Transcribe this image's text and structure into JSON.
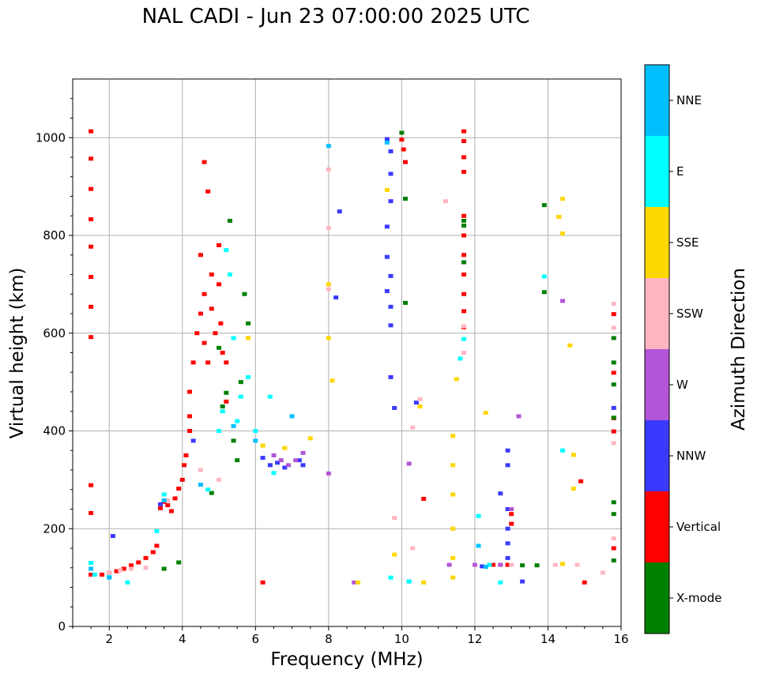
{
  "chart_data": {
    "type": "scatter",
    "title": "NAL CADI - Jun 23 07:00:00 2025 UTC",
    "xlabel": "Frequency (MHz)",
    "ylabel": "Virtual height (km)",
    "xlim": [
      1,
      16
    ],
    "ylim": [
      0,
      1120
    ],
    "xticks": [
      2,
      4,
      6,
      8,
      10,
      12,
      14,
      16
    ],
    "yticks": [
      0,
      200,
      400,
      600,
      800,
      1000
    ],
    "grid": true,
    "colorbar": {
      "label": "Azimuth Direction",
      "categories": [
        "X-mode",
        "Vertical",
        "NNW",
        "W",
        "SSW",
        "SSE",
        "E",
        "NNE"
      ],
      "colors": [
        "#008000",
        "#ff0000",
        "#3a3aff",
        "#b455d8",
        "#ffb6c1",
        "#ffd700",
        "#00ffff",
        "#00bfff"
      ]
    },
    "series": [
      {
        "name": "Vertical",
        "points": [
          [
            1.5,
            1013
          ],
          [
            1.5,
            957
          ],
          [
            1.5,
            895
          ],
          [
            1.5,
            833
          ],
          [
            1.5,
            777
          ],
          [
            1.5,
            715
          ],
          [
            1.5,
            654
          ],
          [
            1.5,
            592
          ],
          [
            1.5,
            289
          ],
          [
            1.5,
            232
          ],
          [
            1.5,
            106
          ],
          [
            1.8,
            106
          ],
          [
            2,
            110
          ],
          [
            2.2,
            113
          ],
          [
            2.4,
            118
          ],
          [
            2.6,
            125
          ],
          [
            2.8,
            131
          ],
          [
            3,
            140
          ],
          [
            3.2,
            152
          ],
          [
            3.3,
            165
          ],
          [
            3.4,
            242
          ],
          [
            3.5,
            255
          ],
          [
            3.6,
            248
          ],
          [
            3.7,
            236
          ],
          [
            3.8,
            262
          ],
          [
            3.9,
            282
          ],
          [
            4,
            300
          ],
          [
            4.05,
            330
          ],
          [
            4.1,
            350
          ],
          [
            4.2,
            400
          ],
          [
            4.2,
            430
          ],
          [
            4.2,
            480
          ],
          [
            4.3,
            540
          ],
          [
            4.4,
            600
          ],
          [
            4.5,
            640
          ],
          [
            4.5,
            760
          ],
          [
            4.6,
            680
          ],
          [
            4.6,
            950
          ],
          [
            4.7,
            890
          ],
          [
            4.8,
            720
          ],
          [
            4.8,
            650
          ],
          [
            4.9,
            600
          ],
          [
            5,
            780
          ],
          [
            5,
            700
          ],
          [
            5.05,
            620
          ],
          [
            5.1,
            560
          ],
          [
            5.2,
            540
          ],
          [
            5.2,
            460
          ],
          [
            4.7,
            540
          ],
          [
            4.6,
            580
          ],
          [
            6.2,
            90
          ],
          [
            10,
            996
          ],
          [
            10.05,
            976
          ],
          [
            10.1,
            950
          ],
          [
            10.6,
            261
          ],
          [
            11.7,
            1013
          ],
          [
            11.7,
            993
          ],
          [
            11.7,
            960
          ],
          [
            11.7,
            930
          ],
          [
            11.7,
            840
          ],
          [
            11.7,
            800
          ],
          [
            11.7,
            760
          ],
          [
            11.7,
            720
          ],
          [
            11.7,
            680
          ],
          [
            11.7,
            645
          ],
          [
            11.7,
            612
          ],
          [
            12.5,
            126
          ],
          [
            12.7,
            126
          ],
          [
            12.9,
            126
          ],
          [
            13,
            210
          ],
          [
            13,
            230
          ],
          [
            14.3,
            838
          ],
          [
            14.9,
            297
          ],
          [
            15,
            90
          ],
          [
            15.8,
            639
          ],
          [
            15.8,
            519
          ],
          [
            15.8,
            426
          ],
          [
            15.8,
            399
          ],
          [
            15.8,
            160
          ]
        ]
      },
      {
        "name": "X-mode",
        "points": [
          [
            3.5,
            118
          ],
          [
            3.9,
            131
          ],
          [
            4.8,
            273
          ],
          [
            5,
            570
          ],
          [
            5.1,
            450
          ],
          [
            5.2,
            478
          ],
          [
            5.3,
            830
          ],
          [
            5.4,
            380
          ],
          [
            5.5,
            340
          ],
          [
            5.6,
            500
          ],
          [
            5.7,
            680
          ],
          [
            5.8,
            620
          ],
          [
            10,
            1010
          ],
          [
            10.1,
            875
          ],
          [
            10.1,
            662
          ],
          [
            11.7,
            830
          ],
          [
            11.7,
            745
          ],
          [
            11.7,
            820
          ],
          [
            13.3,
            125
          ],
          [
            13.7,
            125
          ],
          [
            13.9,
            862
          ],
          [
            13.9,
            684
          ],
          [
            15.8,
            590
          ],
          [
            15.8,
            540
          ],
          [
            15.8,
            495
          ],
          [
            15.8,
            427
          ],
          [
            15.8,
            254
          ],
          [
            15.8,
            230
          ],
          [
            15.8,
            135
          ]
        ]
      },
      {
        "name": "NNW",
        "points": [
          [
            2.1,
            185
          ],
          [
            3.4,
            250
          ],
          [
            4.3,
            380
          ],
          [
            6.2,
            345
          ],
          [
            6.4,
            330
          ],
          [
            6.6,
            335
          ],
          [
            6.8,
            325
          ],
          [
            7.2,
            340
          ],
          [
            7.3,
            330
          ],
          [
            8.2,
            673
          ],
          [
            8.3,
            849
          ],
          [
            9.6,
            997
          ],
          [
            9.7,
            972
          ],
          [
            9.7,
            926
          ],
          [
            9.7,
            870
          ],
          [
            9.6,
            818
          ],
          [
            9.6,
            756
          ],
          [
            9.7,
            717
          ],
          [
            9.6,
            686
          ],
          [
            9.7,
            654
          ],
          [
            9.7,
            616
          ],
          [
            9.7,
            510
          ],
          [
            9.8,
            447
          ],
          [
            10.2,
            92
          ],
          [
            10.4,
            458
          ],
          [
            12.2,
            123
          ],
          [
            12.7,
            272
          ],
          [
            12.9,
            360
          ],
          [
            12.9,
            330
          ],
          [
            12.9,
            240
          ],
          [
            12.9,
            200
          ],
          [
            12.9,
            170
          ],
          [
            12.9,
            140
          ],
          [
            13.3,
            92
          ],
          [
            15.8,
            447
          ]
        ]
      },
      {
        "name": "W",
        "points": [
          [
            6.5,
            350
          ],
          [
            6.7,
            340
          ],
          [
            6.9,
            330
          ],
          [
            7.1,
            340
          ],
          [
            7.3,
            355
          ],
          [
            8,
            313
          ],
          [
            8.7,
            90
          ],
          [
            10.2,
            333
          ],
          [
            11.3,
            126
          ],
          [
            12,
            126
          ],
          [
            12.7,
            126
          ],
          [
            13,
            240
          ],
          [
            13.2,
            430
          ],
          [
            14.4,
            666
          ]
        ]
      },
      {
        "name": "SSW",
        "points": [
          [
            2,
            110
          ],
          [
            2.3,
            115
          ],
          [
            2.6,
            118
          ],
          [
            3,
            120
          ],
          [
            3.6,
            258
          ],
          [
            4.5,
            320
          ],
          [
            5,
            300
          ],
          [
            8,
            935
          ],
          [
            8,
            815
          ],
          [
            8,
            690
          ],
          [
            9.8,
            222
          ],
          [
            10.3,
            160
          ],
          [
            10.3,
            407
          ],
          [
            10.5,
            465
          ],
          [
            11.2,
            870
          ],
          [
            11.7,
            614
          ],
          [
            11.7,
            560
          ],
          [
            13,
            126
          ],
          [
            14.2,
            126
          ],
          [
            14.8,
            126
          ],
          [
            15.5,
            110
          ],
          [
            15.8,
            660
          ],
          [
            15.8,
            611
          ],
          [
            15.8,
            375
          ],
          [
            15.8,
            180
          ]
        ]
      },
      {
        "name": "SSE",
        "points": [
          [
            5.8,
            590
          ],
          [
            6.2,
            370
          ],
          [
            6.8,
            365
          ],
          [
            7.5,
            385
          ],
          [
            8,
            700
          ],
          [
            8,
            590
          ],
          [
            8.1,
            503
          ],
          [
            8.8,
            90
          ],
          [
            9.6,
            893
          ],
          [
            9.8,
            147
          ],
          [
            10.5,
            450
          ],
          [
            10.6,
            90
          ],
          [
            11.4,
            390
          ],
          [
            11.4,
            330
          ],
          [
            11.4,
            270
          ],
          [
            11.4,
            200
          ],
          [
            11.4,
            140
          ],
          [
            11.4,
            100
          ],
          [
            11.5,
            506
          ],
          [
            12.3,
            437
          ],
          [
            14.3,
            838
          ],
          [
            14.4,
            875
          ],
          [
            14.4,
            804
          ],
          [
            14.4,
            128
          ],
          [
            14.6,
            575
          ],
          [
            14.7,
            351
          ],
          [
            14.7,
            282
          ]
        ]
      },
      {
        "name": "E",
        "points": [
          [
            1.5,
            130
          ],
          [
            1.6,
            106
          ],
          [
            2,
            101
          ],
          [
            2.5,
            90
          ],
          [
            3.3,
            195
          ],
          [
            3.5,
            270
          ],
          [
            4.7,
            280
          ],
          [
            5,
            400
          ],
          [
            5.1,
            440
          ],
          [
            5.2,
            770
          ],
          [
            5.3,
            720
          ],
          [
            5.4,
            590
          ],
          [
            5.5,
            420
          ],
          [
            5.6,
            470
          ],
          [
            5.8,
            510
          ],
          [
            6,
            400
          ],
          [
            6.4,
            470
          ],
          [
            6.5,
            314
          ],
          [
            9.7,
            100
          ],
          [
            10.2,
            92
          ],
          [
            11.6,
            548
          ],
          [
            11.7,
            588
          ],
          [
            12.1,
            226
          ],
          [
            12.4,
            126
          ],
          [
            12.7,
            90
          ],
          [
            13.9,
            716
          ],
          [
            14.4,
            360
          ]
        ]
      },
      {
        "name": "NNE",
        "points": [
          [
            1.5,
            118
          ],
          [
            2,
            100
          ],
          [
            3.5,
            258
          ],
          [
            4.5,
            290
          ],
          [
            5.4,
            410
          ],
          [
            6,
            380
          ],
          [
            7,
            430
          ],
          [
            8,
            983
          ],
          [
            9.6,
            990
          ],
          [
            12.1,
            165
          ],
          [
            12.3,
            122
          ]
        ]
      }
    ]
  }
}
